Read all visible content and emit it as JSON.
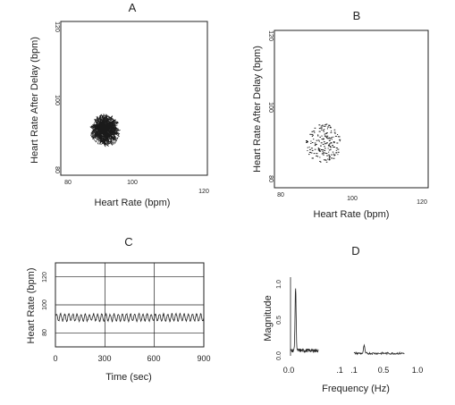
{
  "chart_data": [
    {
      "panel": "A",
      "type": "scatter",
      "xlabel": "Heart Rate (bpm)",
      "ylabel": "Heart Rate After Delay (bpm)",
      "xlim": [
        80,
        120
      ],
      "ylim": [
        80,
        120
      ],
      "x_ticks": [
        "80",
        "100",
        "120"
      ],
      "y_ticks": [
        "80",
        "100",
        "120"
      ],
      "attractor_center": [
        91,
        91
      ],
      "attractor_spread": 4.5,
      "style": "dense connected trajectory"
    },
    {
      "panel": "B",
      "type": "scatter",
      "xlabel": "Heart Rate (bpm)",
      "ylabel": "Heart Rate After Delay (bpm)",
      "xlim": [
        80,
        120
      ],
      "ylim": [
        80,
        120
      ],
      "x_ticks": [
        "80",
        "100",
        "120"
      ],
      "y_ticks": [
        "80",
        "100",
        "120"
      ],
      "attractor_center": [
        92,
        90
      ],
      "attractor_spread": 5,
      "style": "sparse points"
    },
    {
      "panel": "C",
      "type": "line",
      "xlabel": "Time (sec)",
      "ylabel": "Heart Rate (bpm)",
      "xlim": [
        0,
        900
      ],
      "ylim": [
        70,
        130
      ],
      "x_ticks": [
        "0",
        "300",
        "600",
        "900"
      ],
      "y_ticks": [
        "80",
        "100",
        "120"
      ],
      "grid": true,
      "mean": 91,
      "oscillation_period_sec": 25,
      "oscillation_amplitude_bpm": 2.5
    },
    {
      "panel": "D",
      "type": "line",
      "xlabel": "Frequency (Hz)",
      "ylabel": "Magnitude",
      "xlim": [
        0,
        1.0
      ],
      "ylim": [
        0,
        1.0
      ],
      "x_ticks": [
        "0.0",
        ".1",
        ".1",
        "0.5",
        "1.0"
      ],
      "y_ticks": [
        "0.0",
        "0.5",
        "1.0"
      ],
      "peaks": [
        {
          "x": 0.04,
          "y": 0.88
        },
        {
          "x": 0.58,
          "y": 0.12
        }
      ]
    }
  ]
}
